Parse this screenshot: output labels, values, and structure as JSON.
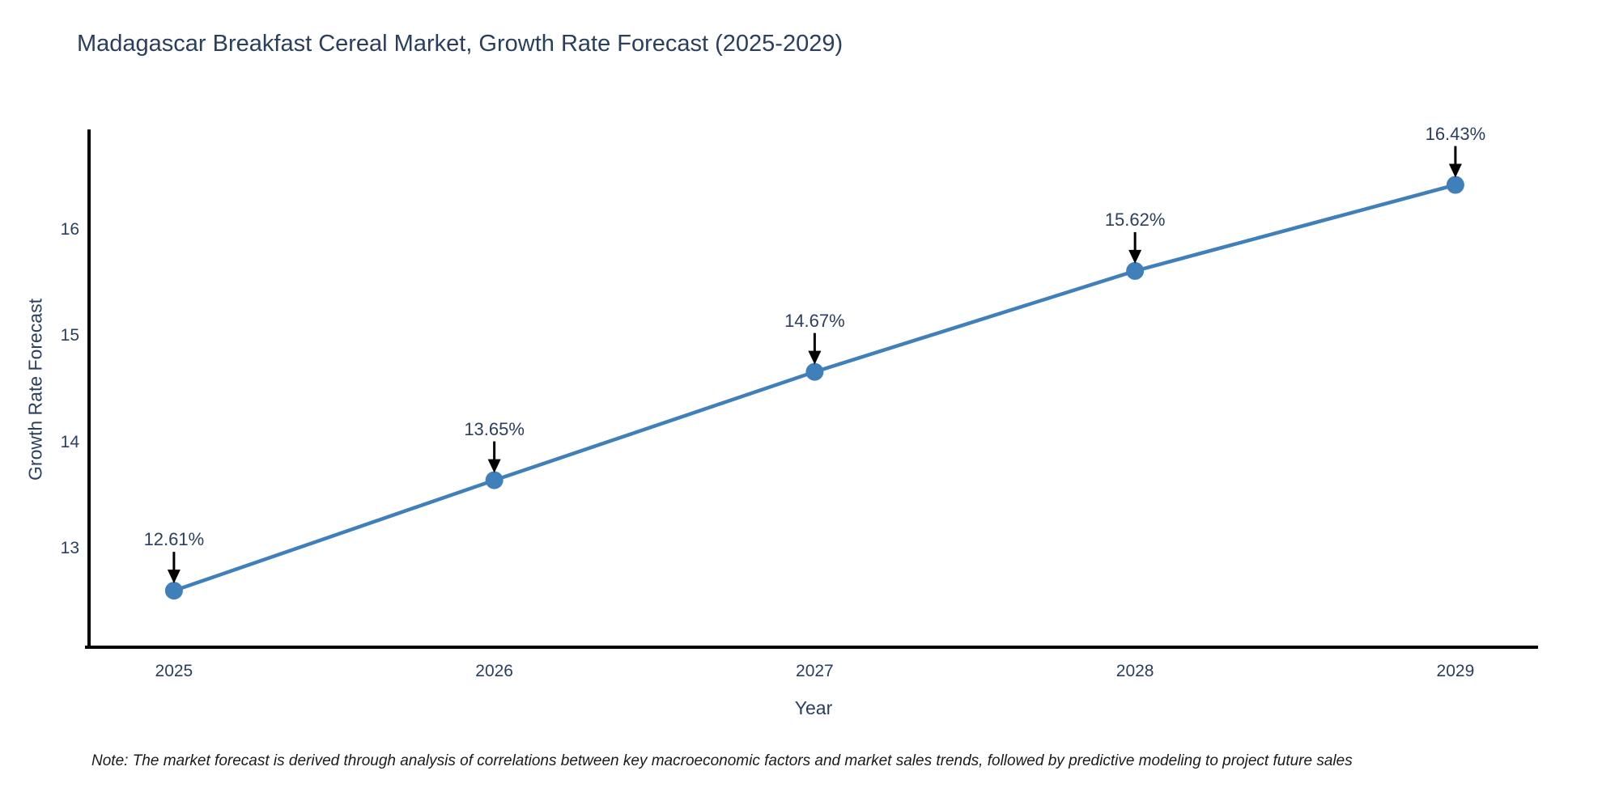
{
  "title": "Madagascar Breakfast Cereal Market, Growth Rate Forecast (2025-2029)",
  "note": "Note: The market forecast is derived through analysis of correlations between key macroeconomic factors and market sales trends, followed by predictive modeling to project future sales",
  "chart_data": {
    "type": "line",
    "title": "Madagascar Breakfast Cereal Market, Growth Rate Forecast (2025-2029)",
    "xlabel": "Year",
    "ylabel": "Growth Rate Forecast",
    "x": [
      2025,
      2026,
      2027,
      2028,
      2029
    ],
    "values": [
      12.61,
      13.65,
      14.67,
      15.62,
      16.43
    ],
    "point_labels": [
      "12.61%",
      "13.65%",
      "14.67%",
      "15.62%",
      "16.43%"
    ],
    "x_ticks": [
      "2025",
      "2026",
      "2027",
      "2028",
      "2029"
    ],
    "y_ticks": [
      13,
      14,
      15,
      16
    ],
    "xlim": [
      2024.735,
      2029.258
    ],
    "ylim": [
      12.078,
      16.952
    ],
    "grid": false,
    "legend": "none",
    "line_color": "#3f7fba",
    "marker_color": "#3f7fba",
    "axis_color": "#000000",
    "arrow_color": "#000000",
    "text_color": "#2a3f5f"
  }
}
